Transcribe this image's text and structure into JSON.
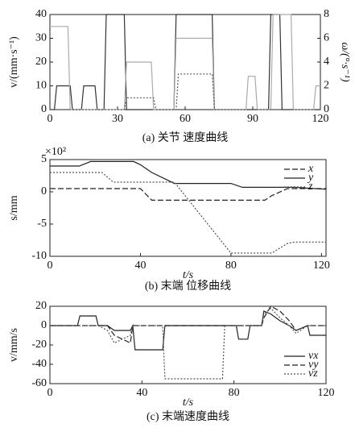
{
  "chart_data": [
    {
      "type": "line",
      "caption": "(a)  关节 速度曲线",
      "ylabel": "v/(mm·s⁻¹)",
      "y2label": "ω/(°·s⁻¹)",
      "xlim": [
        0,
        120
      ],
      "xticks": [
        0,
        30,
        60,
        90,
        120
      ],
      "ylim": [
        0,
        40
      ],
      "yticks": [
        0,
        10,
        20,
        30,
        40
      ],
      "y2lim": [
        0,
        8
      ],
      "y2ticks": [
        0,
        2,
        4,
        6,
        8
      ],
      "series": [
        {
          "color": "#333333",
          "dash": "solid",
          "x": [
            0,
            2,
            3,
            9,
            10,
            14,
            15,
            20,
            21,
            24,
            25,
            33,
            34,
            55,
            56,
            72,
            73,
            97,
            98,
            102,
            103,
            120
          ],
          "values": [
            0,
            0,
            10,
            10,
            0,
            0,
            10,
            10,
            0,
            0,
            40,
            40,
            0,
            0,
            40,
            40,
            0,
            0,
            40,
            40,
            0,
            0
          ]
        },
        {
          "color": "#aaaaaa",
          "dash": "solid",
          "axis": "y2",
          "x": [
            0,
            8,
            9,
            33,
            34,
            45,
            46,
            55,
            56,
            72,
            73,
            87,
            88,
            91,
            92,
            98,
            99,
            107,
            108,
            117,
            118,
            120
          ],
          "values": [
            7,
            7,
            0,
            0,
            4,
            4,
            0,
            0,
            6,
            6,
            0,
            0,
            2.8,
            2.8,
            0,
            0,
            8,
            8,
            0,
            0,
            2,
            2
          ]
        },
        {
          "color": "#555555",
          "dash": "dotted",
          "axis": "y2",
          "x": [
            0,
            33,
            34,
            46,
            47,
            56,
            57,
            72,
            73,
            120
          ],
          "values": [
            0,
            0,
            1,
            1,
            0,
            0,
            3,
            3,
            0,
            0
          ]
        }
      ]
    },
    {
      "type": "line",
      "caption": "(b)  末端 位移曲线",
      "ylabel": "s/mm",
      "xlabel": "t/s",
      "y_scale_note": "×10²",
      "xlim": [
        0,
        122
      ],
      "xticks": [
        0,
        40,
        80,
        120
      ],
      "ylim": [
        -10,
        5
      ],
      "yticks": [
        -10,
        -5,
        0,
        5
      ],
      "legend": "upper right",
      "x": [
        0,
        13,
        18,
        23,
        28,
        37,
        40,
        45,
        55,
        80,
        85,
        95,
        98,
        105,
        108,
        122
      ],
      "series": [
        {
          "name": "x",
          "color": "#222222",
          "dash": "dashed",
          "values": [
            0.5,
            0.5,
            0.5,
            0.5,
            0.5,
            0.5,
            0.5,
            -1.3,
            -1.3,
            -1.3,
            -1.3,
            -1.3,
            -0.6,
            0.5,
            0.5,
            0.5
          ]
        },
        {
          "name": "y",
          "color": "#222222",
          "dash": "solid",
          "values": [
            4,
            4,
            4.7,
            4.7,
            4.7,
            4.7,
            4.2,
            3,
            1.3,
            1.3,
            0.7,
            0.7,
            0.7,
            0.7,
            0.7,
            0.4
          ]
        },
        {
          "name": "z",
          "color": "#555555",
          "dash": "dotted",
          "values": [
            3,
            3,
            3,
            3,
            1.5,
            1.5,
            1.5,
            1.5,
            1.5,
            -9.5,
            -9.5,
            -9.5,
            -9.5,
            -8,
            -7.8,
            -7.8
          ]
        }
      ]
    },
    {
      "type": "line",
      "caption": "(c)  末端速度曲线",
      "ylabel": "v/mm/s",
      "xlabel": "t/s",
      "xlim": [
        0,
        120
      ],
      "xticks": [
        0,
        40,
        80,
        120
      ],
      "ylim": [
        -60,
        20
      ],
      "yticks": [
        -60,
        -40,
        -20,
        0,
        20
      ],
      "legend": "lower right",
      "x": [
        0,
        12,
        13,
        20,
        21,
        25,
        28,
        35,
        36,
        37,
        49,
        50,
        75,
        76,
        81,
        82,
        86,
        87,
        92,
        93,
        96,
        100,
        104,
        107,
        112,
        113,
        120
      ],
      "series": [
        {
          "name": "vx",
          "color": "#222222",
          "dash": "solid",
          "values": [
            0,
            0,
            10,
            10,
            0,
            0,
            -5,
            -5,
            0,
            -25,
            -25,
            0,
            0,
            0,
            0,
            -14,
            -14,
            0,
            0,
            15,
            12,
            5,
            0,
            -5,
            0,
            -10,
            -10
          ]
        },
        {
          "name": "vy",
          "color": "#222222",
          "dash": "dashed",
          "values": [
            0,
            0,
            0,
            0,
            0,
            0,
            -10,
            -18,
            0,
            0,
            0,
            0,
            0,
            0,
            0,
            0,
            0,
            0,
            0,
            8,
            20,
            15,
            5,
            -5,
            0,
            0,
            0
          ]
        },
        {
          "name": "vz",
          "color": "#555555",
          "dash": "dotted",
          "values": [
            0,
            0,
            0,
            0,
            0,
            -5,
            -18,
            -10,
            0,
            0,
            0,
            -55,
            -55,
            0,
            0,
            0,
            0,
            0,
            0,
            12,
            18,
            8,
            0,
            -8,
            0,
            0,
            0
          ]
        }
      ]
    }
  ]
}
